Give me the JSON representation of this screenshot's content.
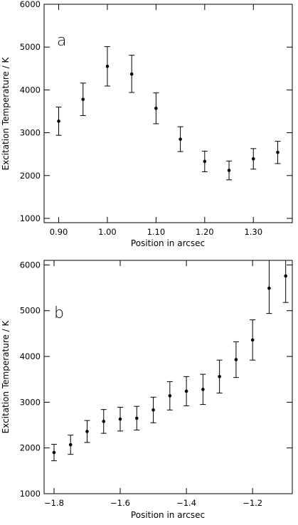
{
  "chart_data": [
    {
      "type": "scatter",
      "panel_label": "a",
      "xlabel": "Position in arcsec",
      "ylabel": "Excitation Temperature / K",
      "xlim": [
        0.87,
        1.38
      ],
      "ylim": [
        900,
        6000
      ],
      "xticks": [
        0.9,
        1.0,
        1.1,
        1.2,
        1.3
      ],
      "xtick_labels": [
        "0.90",
        "1.00",
        "1.10",
        "1.20",
        "1.30"
      ],
      "yticks": [
        1000,
        2000,
        3000,
        4000,
        5000,
        6000
      ],
      "ytick_labels": [
        "1000",
        "2000",
        "3000",
        "4000",
        "5000",
        "6000"
      ],
      "grid": false,
      "series": [
        {
          "points": [
            {
              "x": 0.9,
              "y": 3270,
              "err_low": 2940,
              "err_high": 3600
            },
            {
              "x": 0.95,
              "y": 3780,
              "err_low": 3400,
              "err_high": 4160
            },
            {
              "x": 1.0,
              "y": 4550,
              "err_low": 4090,
              "err_high": 5010
            },
            {
              "x": 1.05,
              "y": 4370,
              "err_low": 3940,
              "err_high": 4810
            },
            {
              "x": 1.1,
              "y": 3570,
              "err_low": 3210,
              "err_high": 3930
            },
            {
              "x": 1.15,
              "y": 2850,
              "err_low": 2560,
              "err_high": 3140
            },
            {
              "x": 1.2,
              "y": 2330,
              "err_low": 2090,
              "err_high": 2570
            },
            {
              "x": 1.25,
              "y": 2120,
              "err_low": 1900,
              "err_high": 2340
            },
            {
              "x": 1.3,
              "y": 2390,
              "err_low": 2150,
              "err_high": 2630
            },
            {
              "x": 1.35,
              "y": 2540,
              "err_low": 2280,
              "err_high": 2800
            }
          ]
        }
      ]
    },
    {
      "type": "scatter",
      "panel_label": "b",
      "xlabel": "Position in arcsec",
      "ylabel": "Excitation Temperature / K",
      "xlim": [
        -1.83,
        -1.08
      ],
      "ylim": [
        1000,
        6100
      ],
      "xticks": [
        -1.8,
        -1.6,
        -1.4,
        -1.2
      ],
      "xtick_labels": [
        "−1.8",
        "−1.6",
        "−1.4",
        "−1.2"
      ],
      "yticks": [
        1000,
        2000,
        3000,
        4000,
        5000,
        6000
      ],
      "ytick_labels": [
        "1000",
        "2000",
        "3000",
        "4000",
        "5000",
        "6000"
      ],
      "grid": false,
      "series": [
        {
          "points": [
            {
              "x": -1.8,
              "y": 1900,
              "err_low": 1720,
              "err_high": 2080
            },
            {
              "x": -1.75,
              "y": 2070,
              "err_low": 1860,
              "err_high": 2280
            },
            {
              "x": -1.7,
              "y": 2360,
              "err_low": 2120,
              "err_high": 2600
            },
            {
              "x": -1.65,
              "y": 2580,
              "err_low": 2320,
              "err_high": 2840
            },
            {
              "x": -1.6,
              "y": 2630,
              "err_low": 2370,
              "err_high": 2890
            },
            {
              "x": -1.55,
              "y": 2650,
              "err_low": 2390,
              "err_high": 2910
            },
            {
              "x": -1.5,
              "y": 2830,
              "err_low": 2550,
              "err_high": 3110
            },
            {
              "x": -1.45,
              "y": 3140,
              "err_low": 2830,
              "err_high": 3450
            },
            {
              "x": -1.4,
              "y": 3240,
              "err_low": 2920,
              "err_high": 3560
            },
            {
              "x": -1.35,
              "y": 3280,
              "err_low": 2950,
              "err_high": 3610
            },
            {
              "x": -1.3,
              "y": 3560,
              "err_low": 3200,
              "err_high": 3920
            },
            {
              "x": -1.25,
              "y": 3930,
              "err_low": 3540,
              "err_high": 4320
            },
            {
              "x": -1.2,
              "y": 4360,
              "err_low": 3920,
              "err_high": 4800
            },
            {
              "x": -1.15,
              "y": 5490,
              "err_low": 4940,
              "err_high": 6100
            },
            {
              "x": -1.1,
              "y": 5760,
              "err_low": 5180,
              "err_high": 6100
            }
          ]
        }
      ]
    }
  ]
}
